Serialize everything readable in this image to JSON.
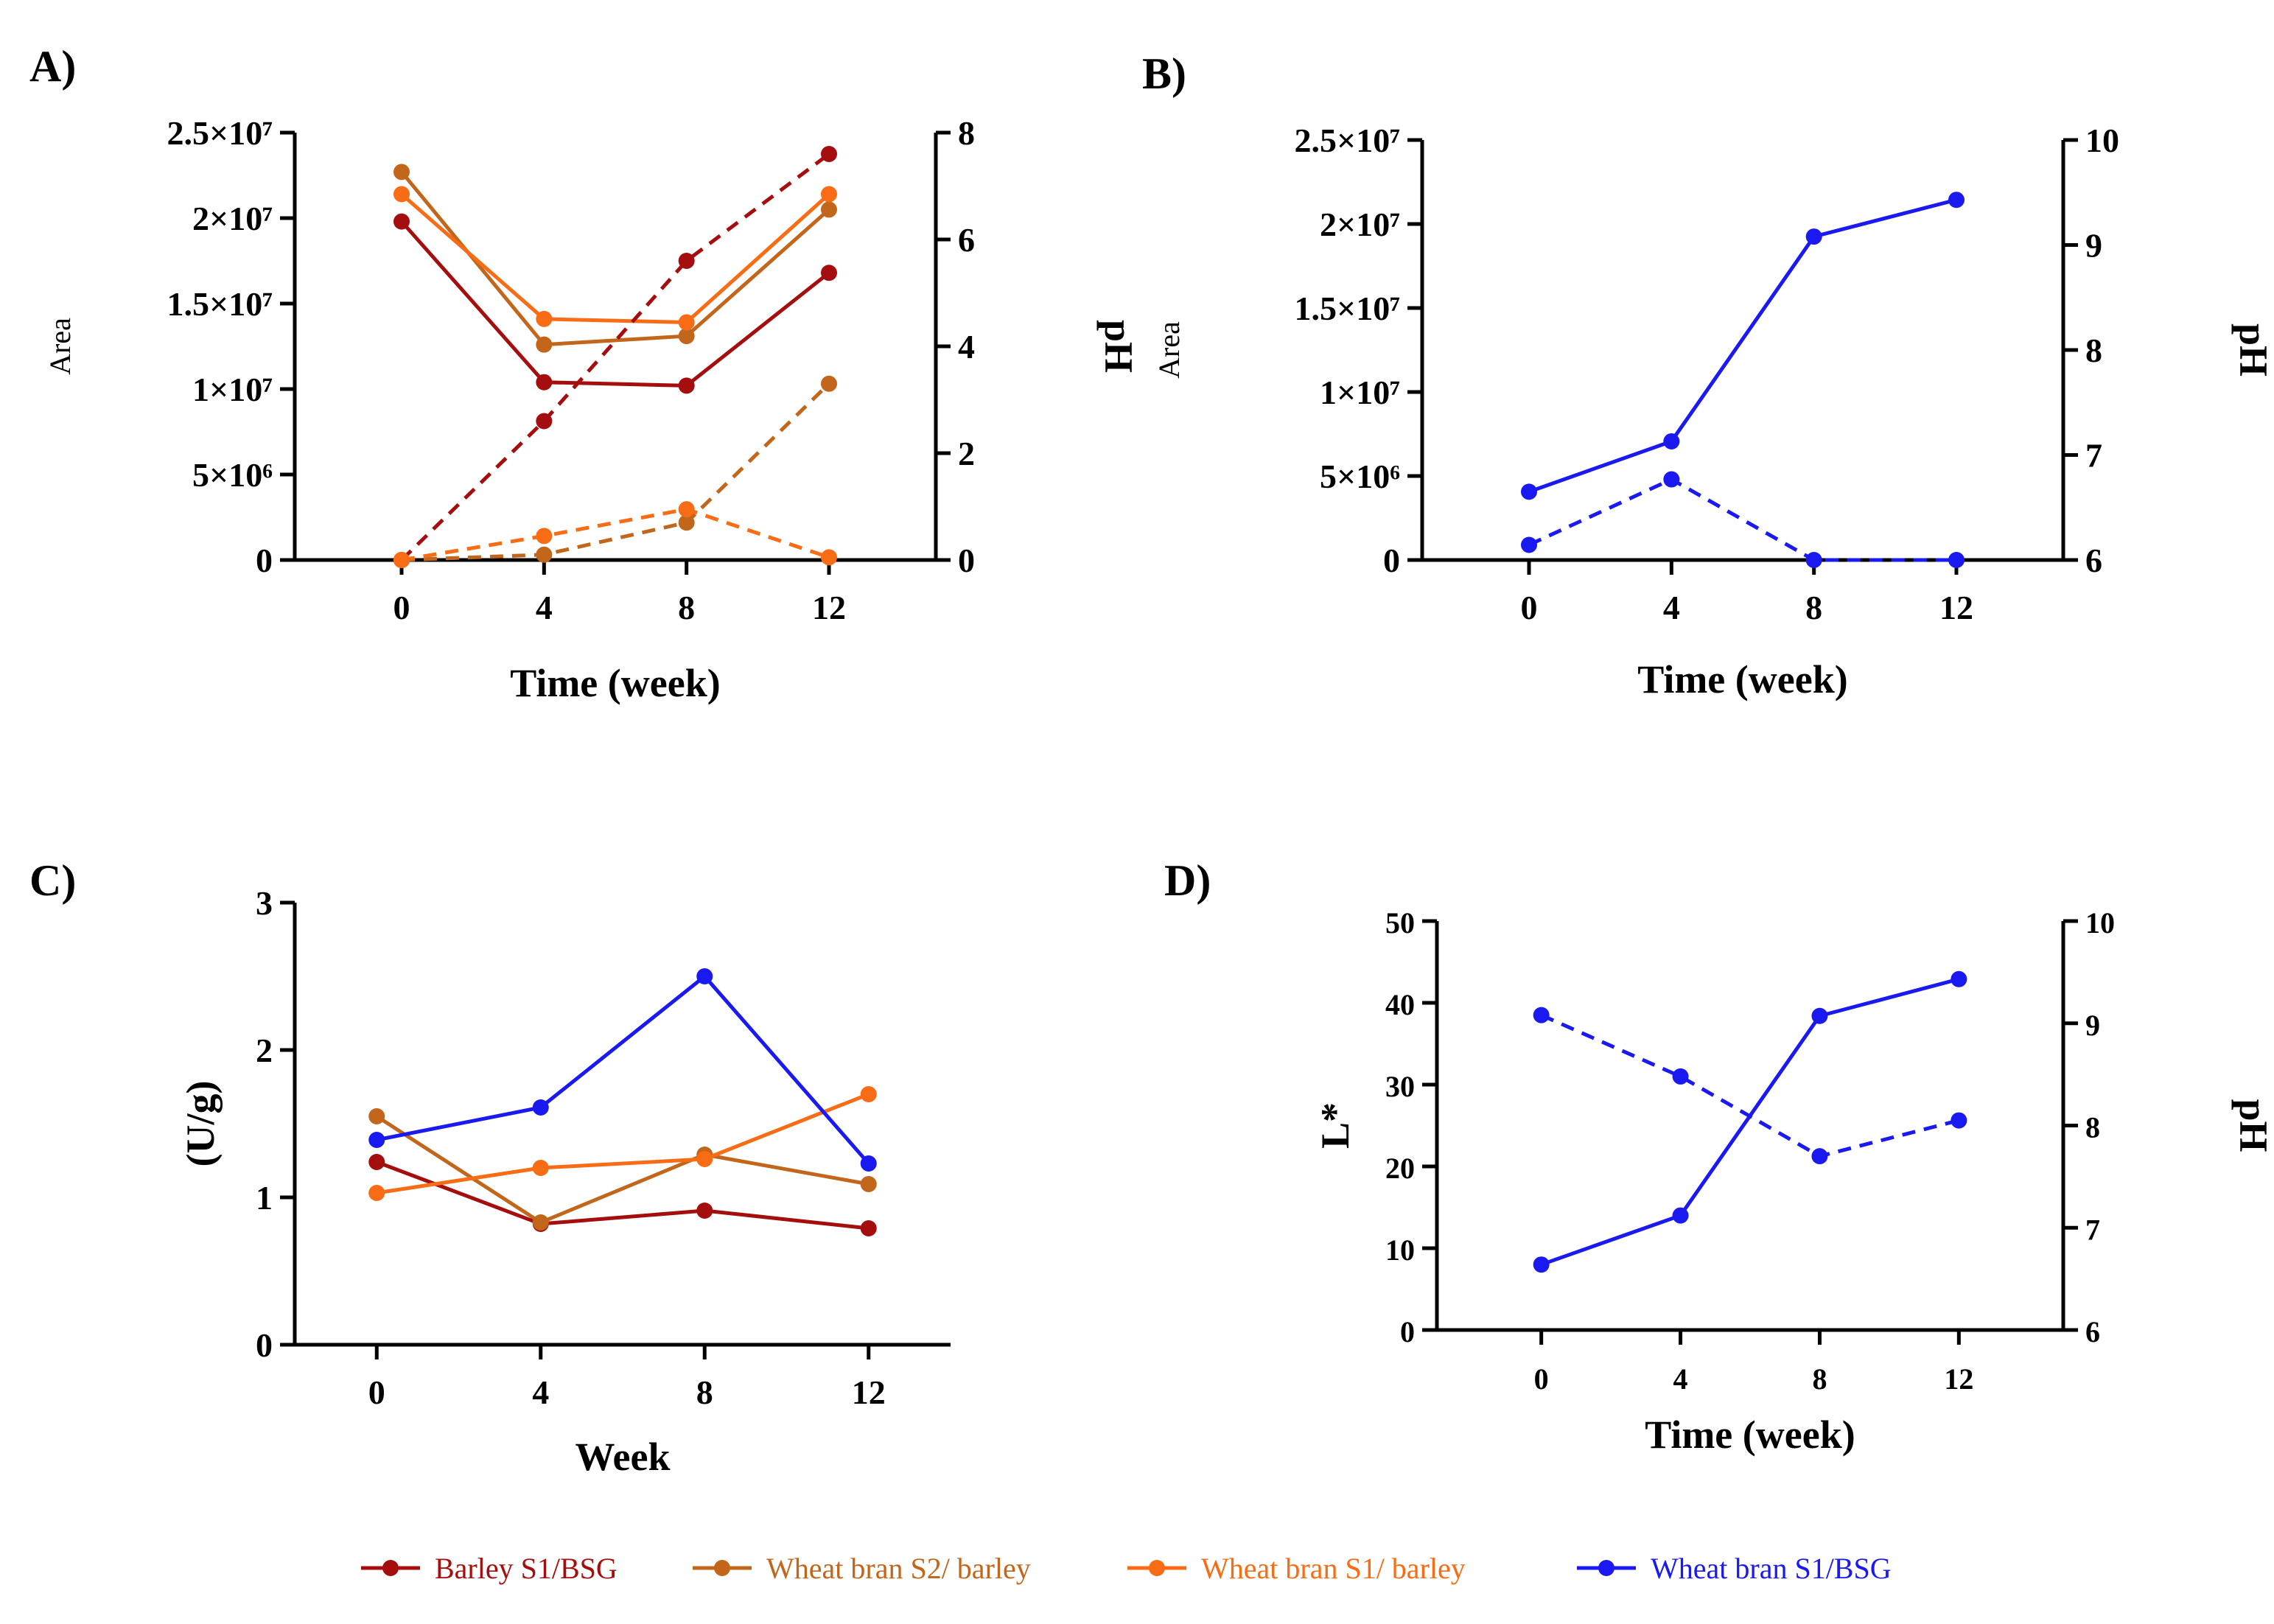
{
  "legend": [
    {
      "label": "Barley S1/BSG",
      "color": "#A50E0E"
    },
    {
      "label": "Wheat bran S2/ barley",
      "color": "#C2661B"
    },
    {
      "label": "Wheat bran S1/ barley",
      "color": "#F76C14"
    },
    {
      "label": "Wheat bran S1/BSG",
      "color": "#1A1AF0"
    }
  ],
  "chart_data": [
    {
      "panel": "A)",
      "type": "line",
      "xlabel": "Time (week)",
      "ylabel": "Area",
      "y2label": "pH",
      "x": [
        0,
        4,
        8,
        12
      ],
      "xlim": [
        -3,
        15
      ],
      "ylim": [
        0,
        25000000
      ],
      "y2lim": [
        0,
        8
      ],
      "xticks": [
        "0",
        "4",
        "8",
        "12"
      ],
      "yticks": [
        "0",
        "5×10⁶",
        "1×10⁷",
        "1.5×10⁷",
        "2×10⁷",
        "2.5×10⁷"
      ],
      "y2ticks": [
        "0",
        "2",
        "4",
        "6",
        "8"
      ],
      "series": [
        {
          "name": "Barley S1/BSG",
          "axis": "left",
          "style": "solid",
          "values": [
            19800000,
            10400000,
            10200000,
            16800000
          ]
        },
        {
          "name": "Wheat bran S2/ barley",
          "axis": "left",
          "style": "solid",
          "values": [
            22700000,
            12600000,
            13100000,
            20500000
          ]
        },
        {
          "name": "Wheat bran S1/ barley",
          "axis": "left",
          "style": "solid",
          "values": [
            21400000,
            14100000,
            13900000,
            21400000
          ]
        },
        {
          "name": "Barley S1/BSG",
          "axis": "right",
          "style": "dashed",
          "values": [
            0,
            2.6,
            5.6,
            7.6
          ]
        },
        {
          "name": "Wheat bran S2/ barley",
          "axis": "right",
          "style": "dashed",
          "values": [
            0,
            0.1,
            0.7,
            3.3
          ]
        },
        {
          "name": "Wheat bran S1/ barley",
          "axis": "right",
          "style": "dashed",
          "values": [
            0,
            0.45,
            0.95,
            0.05
          ]
        }
      ]
    },
    {
      "panel": "B)",
      "type": "line",
      "xlabel": "Time (week)",
      "ylabel": "Area",
      "y2label": "pH",
      "x": [
        0,
        4,
        8,
        12
      ],
      "xlim": [
        -3,
        15
      ],
      "ylim": [
        0,
        25000000
      ],
      "y2lim": [
        6,
        10
      ],
      "xticks": [
        "0",
        "4",
        "8",
        "12"
      ],
      "yticks": [
        "0",
        "5×10⁶",
        "1×10⁷",
        "1.5×10⁷",
        "2×10⁷",
        "2.5×10⁷"
      ],
      "y2ticks": [
        "6",
        "7",
        "8",
        "9",
        "10"
      ],
      "series": [
        {
          "name": "Wheat bran S1/BSG",
          "axis": "right",
          "style": "solid",
          "values": [
            6.65,
            7.13,
            9.08,
            9.43
          ]
        },
        {
          "name": "Wheat bran S1/BSG",
          "axis": "left",
          "style": "dashed",
          "values": [
            900000,
            4800000,
            0,
            0
          ]
        }
      ]
    },
    {
      "panel": "C)",
      "type": "line",
      "xlabel": "Week",
      "ylabel": "(U/g)",
      "x": [
        0,
        4,
        8,
        12
      ],
      "xlim": [
        -2,
        14
      ],
      "ylim": [
        0,
        3
      ],
      "xticks": [
        "0",
        "4",
        "8",
        "12"
      ],
      "yticks": [
        "0",
        "1",
        "2",
        "3"
      ],
      "series": [
        {
          "name": "Barley S1/BSG",
          "axis": "left",
          "style": "solid",
          "values": [
            1.24,
            0.82,
            0.91,
            0.79
          ]
        },
        {
          "name": "Wheat bran S2/ barley",
          "axis": "left",
          "style": "solid",
          "values": [
            1.55,
            0.83,
            1.29,
            1.09
          ]
        },
        {
          "name": "Wheat bran S1/ barley",
          "axis": "left",
          "style": "solid",
          "values": [
            1.03,
            1.2,
            1.26,
            1.7
          ]
        },
        {
          "name": "Wheat bran S1/BSG",
          "axis": "left",
          "style": "solid",
          "values": [
            1.39,
            1.61,
            2.5,
            1.23
          ]
        }
      ]
    },
    {
      "panel": "D)",
      "type": "line",
      "xlabel": "Time (week)",
      "ylabel": "L*",
      "y2label": "pH",
      "x": [
        0,
        4,
        8,
        12
      ],
      "xlim": [
        -3,
        15
      ],
      "ylim": [
        0,
        50
      ],
      "y2lim": [
        6,
        10
      ],
      "xticks": [
        "0",
        "4",
        "8",
        "12"
      ],
      "yticks": [
        "0",
        "10",
        "20",
        "30",
        "40",
        "50"
      ],
      "y2ticks": [
        "6",
        "7",
        "8",
        "9",
        "10"
      ],
      "series": [
        {
          "name": "Wheat bran S1/BSG",
          "axis": "left",
          "style": "solid",
          "values": [
            8,
            14,
            38.4,
            42.9
          ]
        },
        {
          "name": "Wheat bran S1/BSG",
          "axis": "right",
          "style": "dashed",
          "values": [
            9.08,
            8.48,
            7.7,
            8.05
          ]
        }
      ]
    }
  ]
}
